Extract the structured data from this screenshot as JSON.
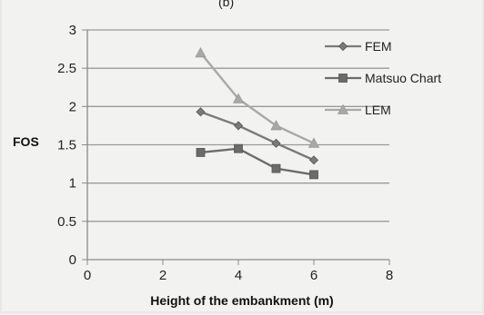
{
  "chart_data": {
    "type": "line",
    "panel_label": "(b)",
    "xlabel": "Height of the embankment (m)",
    "ylabel": "FOS",
    "xlim": [
      0,
      8
    ],
    "ylim": [
      0,
      3
    ],
    "xticks": [
      "0",
      "2",
      "4",
      "6",
      "8"
    ],
    "yticks": [
      "0",
      "0.5",
      "1",
      "1.5",
      "2",
      "2.5",
      "3"
    ],
    "grid": true,
    "legend_position": "top-right",
    "x": [
      3,
      4,
      5,
      6
    ],
    "series": [
      {
        "name": "FEM",
        "marker": "diamond",
        "color": "#7a7a7a",
        "values": [
          1.93,
          1.75,
          1.52,
          1.3
        ]
      },
      {
        "name": "Matsuo Chart",
        "marker": "square",
        "color": "#6b6b6b",
        "values": [
          1.4,
          1.45,
          1.19,
          1.11
        ]
      },
      {
        "name": "LEM",
        "marker": "triangle",
        "color": "#a8a8a8",
        "values": [
          2.7,
          2.1,
          1.75,
          1.52
        ]
      }
    ]
  }
}
